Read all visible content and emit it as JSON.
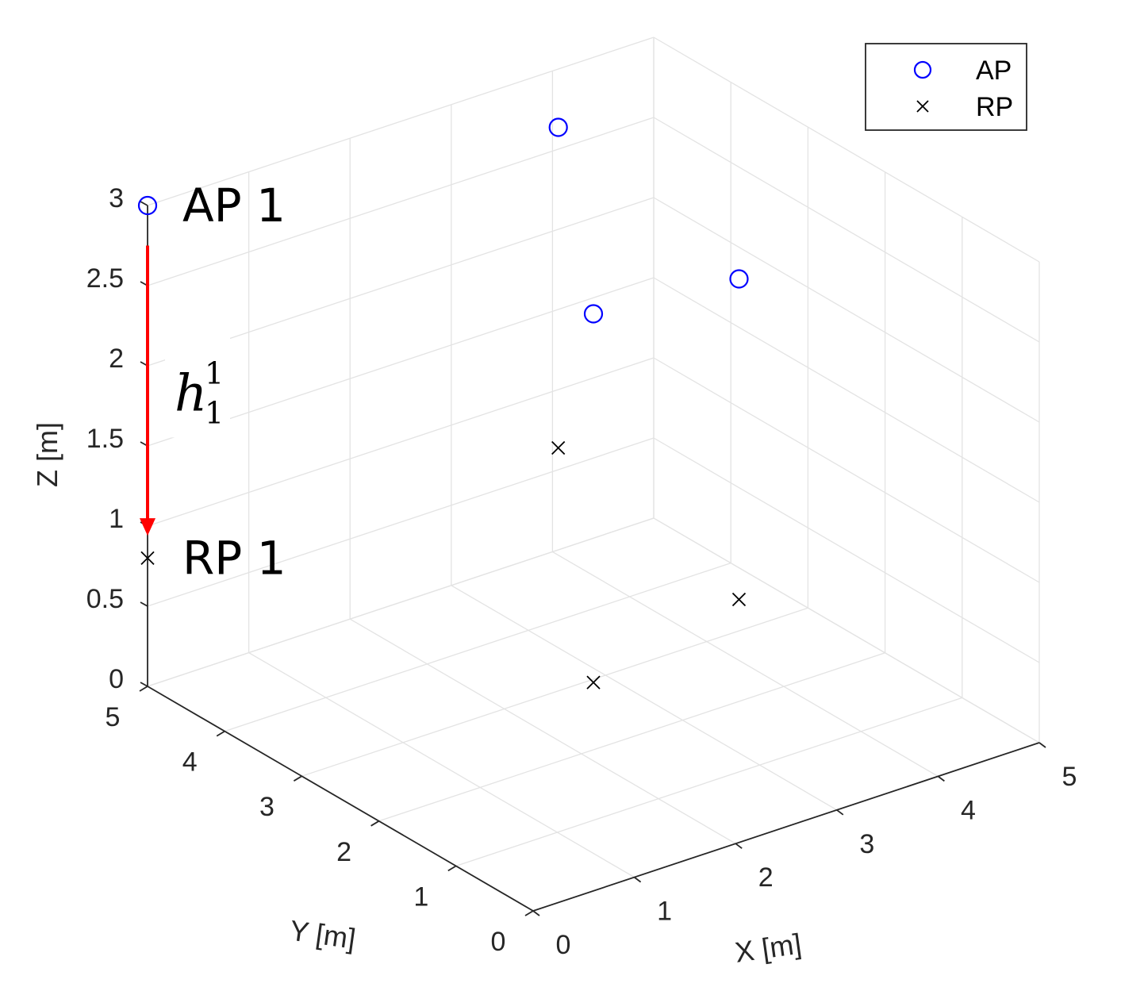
{
  "chart_data": {
    "type": "scatter",
    "projection": "3d",
    "xlabel": "X [m]",
    "ylabel": "Y [m]",
    "zlabel": "Z [m]",
    "xlim": [
      0,
      5
    ],
    "ylim": [
      0,
      5
    ],
    "zlim": [
      0,
      3
    ],
    "xticks": [
      "0",
      "1",
      "2",
      "3",
      "4",
      "5"
    ],
    "yticks": [
      "0",
      "1",
      "2",
      "3",
      "4",
      "5"
    ],
    "zticks": [
      "0",
      "0.5",
      "1",
      "1.5",
      "2",
      "2.5",
      "3"
    ],
    "grid": true,
    "legend_position": "top-right",
    "series": [
      {
        "name": "AP",
        "marker": "circle",
        "color": "#0000ff",
        "points": [
          {
            "x": 0,
            "y": 5,
            "z": 3
          },
          {
            "x": 3.6,
            "y": 4.4,
            "z": 2.9
          },
          {
            "x": 2.5,
            "y": 2.5,
            "z": 2.5
          },
          {
            "x": 3.1,
            "y": 1.4,
            "z": 2.9
          }
        ]
      },
      {
        "name": "RP",
        "marker": "x",
        "color": "#000000",
        "points": [
          {
            "x": 0,
            "y": 5,
            "z": 0.8
          },
          {
            "x": 3.6,
            "y": 4.4,
            "z": 0.9
          },
          {
            "x": 3.1,
            "y": 1.4,
            "z": 0.9
          },
          {
            "x": 2.5,
            "y": 2.5,
            "z": 0.2
          }
        ]
      }
    ],
    "annotations": [
      {
        "text": "AP 1",
        "x": 0,
        "y": 5,
        "z": 3
      },
      {
        "text": "RP 1",
        "x": 0,
        "y": 5,
        "z": 0.8
      }
    ],
    "arrow": {
      "color": "#ff0000",
      "from": {
        "x": 0,
        "y": 5,
        "z": 2.75
      },
      "to": {
        "x": 0,
        "y": 5,
        "z": 0.95
      },
      "label_base": "h",
      "label_sup": "1",
      "label_sub": "1"
    }
  }
}
